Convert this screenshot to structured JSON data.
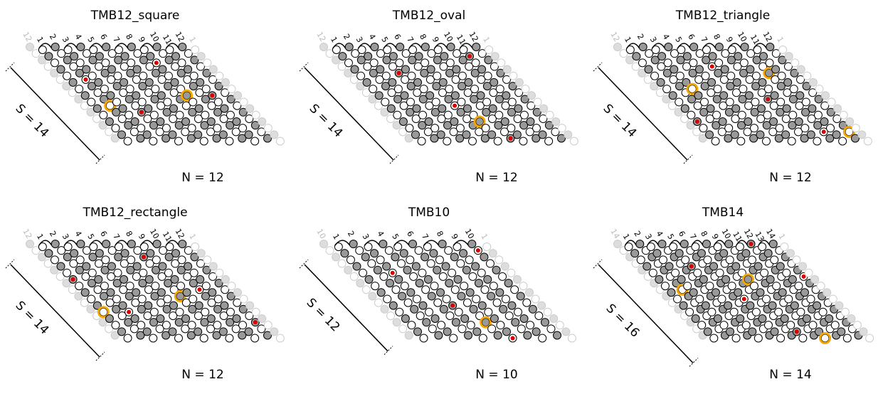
{
  "panels": [
    {
      "title": "TMB12_square",
      "shear": "S = 14",
      "strand_count": "N = 12",
      "strand_labels": [
        "12",
        "1",
        "2",
        "3",
        "4",
        "5",
        "6",
        "7",
        "8",
        "9",
        "10",
        "11",
        "12",
        "1"
      ]
    },
    {
      "title": "TMB12_oval",
      "shear": "S = 14",
      "strand_count": "N = 12",
      "strand_labels": [
        "12",
        "1",
        "2",
        "3",
        "4",
        "5",
        "6",
        "7",
        "8",
        "9",
        "10",
        "11",
        "12",
        "1"
      ]
    },
    {
      "title": "TMB12_triangle",
      "shear": "S = 14",
      "strand_count": "N = 12",
      "strand_labels": [
        "12",
        "1",
        "2",
        "3",
        "4",
        "5",
        "6",
        "7",
        "8",
        "9",
        "10",
        "11",
        "12",
        "1"
      ]
    },
    {
      "title": "TMB12_rectangle",
      "shear": "S = 14",
      "strand_count": "N = 12",
      "strand_labels": [
        "12",
        "1",
        "2",
        "3",
        "4",
        "5",
        "6",
        "7",
        "8",
        "9",
        "10",
        "11",
        "12",
        "1"
      ]
    },
    {
      "title": "TMB10",
      "shear": "S = 12",
      "strand_count": "N = 10",
      "strand_labels": [
        "10",
        "1",
        "2",
        "3",
        "4",
        "5",
        "6",
        "7",
        "8",
        "9",
        "10",
        "1"
      ]
    },
    {
      "title": "TMB14",
      "shear": "S = 16",
      "strand_count": "N = 14",
      "strand_labels": [
        "14",
        "1",
        "2",
        "3",
        "4",
        "5",
        "6",
        "7",
        "8",
        "9",
        "10",
        "11",
        "12",
        "13",
        "14",
        "1"
      ]
    }
  ]
}
